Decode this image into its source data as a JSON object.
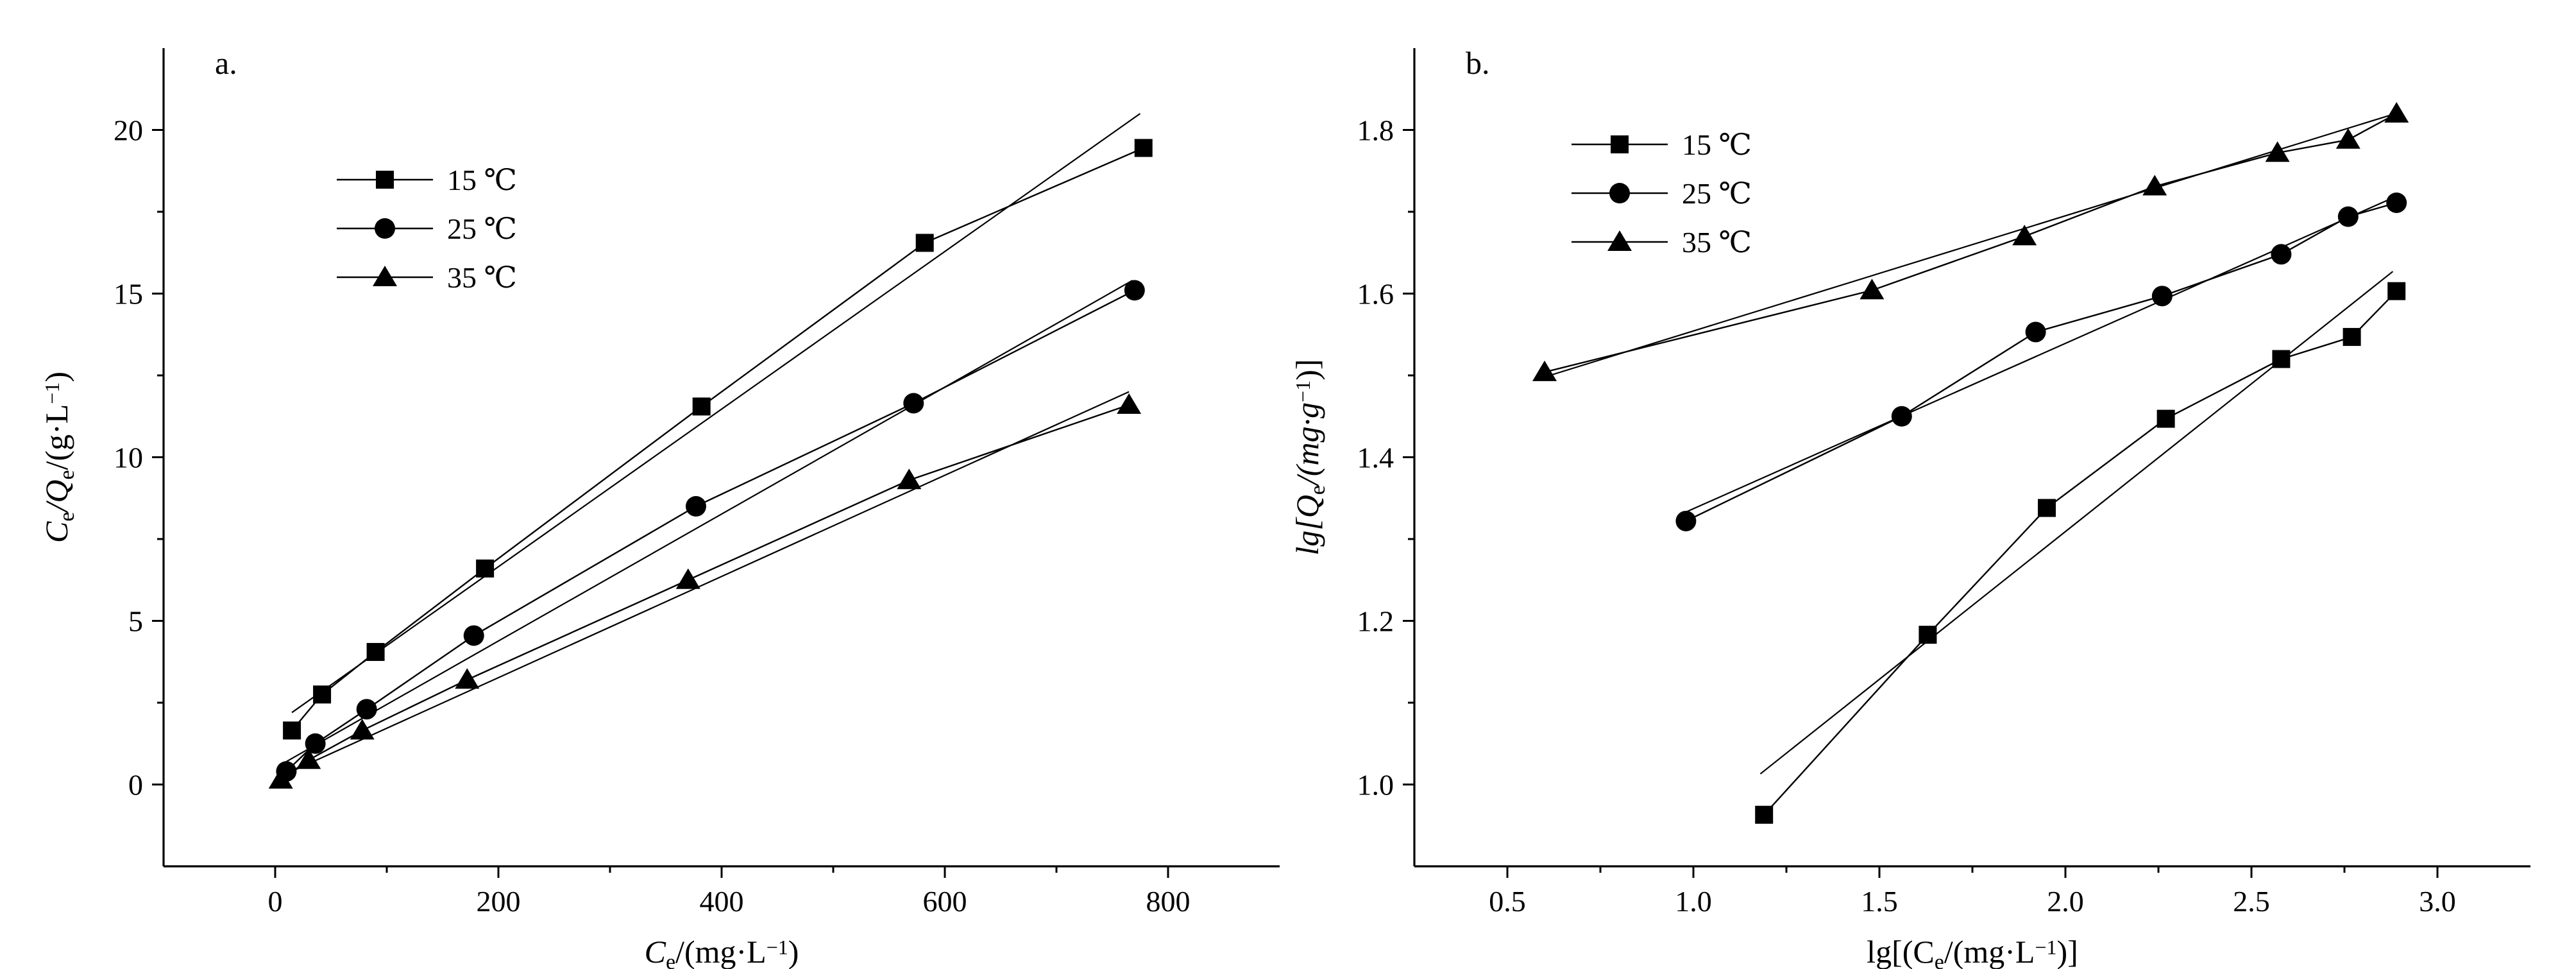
{
  "chart_data": [
    {
      "type": "line",
      "panel_label": "a.",
      "ylabel": "Ce/Qe/(g·L⁻¹)",
      "ylabel_parts": [
        "C",
        "e",
        "/Q",
        "e",
        "/(g·L",
        "−1",
        ")"
      ],
      "xlabel": "Ce/(mg·L⁻¹)",
      "xlabel_parts": [
        "C",
        "e",
        "/(mg·L",
        "−1",
        ")"
      ],
      "xlim": [
        -100,
        900
      ],
      "ylim": [
        -2.5,
        22.5
      ],
      "x_ticks": [
        0,
        200,
        400,
        600,
        800
      ],
      "x_tick_labels": [
        "0",
        "200",
        "400",
        "600",
        "800"
      ],
      "y_ticks": [
        0,
        5,
        10,
        15,
        20
      ],
      "y_tick_labels": [
        "0",
        "5",
        "10",
        "15",
        "20"
      ],
      "legend": {
        "position": "top-left",
        "entries": [
          "15 ℃",
          "25 ℃",
          "35 ℃"
        ]
      },
      "series": [
        {
          "name": "15 ℃",
          "marker": "square",
          "x": [
            15,
            42,
            90,
            188,
            382,
            582,
            778
          ],
          "y": [
            1.65,
            2.75,
            4.05,
            6.6,
            11.55,
            16.55,
            19.45
          ],
          "fit": {
            "x": [
              15,
              775
            ],
            "y": [
              2.2,
              20.5
            ]
          }
        },
        {
          "name": "25 ℃",
          "marker": "circle",
          "x": [
            10,
            36,
            82,
            178,
            377,
            572,
            770
          ],
          "y": [
            0.4,
            1.25,
            2.3,
            4.55,
            8.5,
            11.65,
            15.1
          ],
          "fit": {
            "x": [
              10,
              768
            ],
            "y": [
              0.7,
              15.4
            ]
          }
        },
        {
          "name": "35 ℃",
          "marker": "triangle",
          "x": [
            5,
            30,
            78,
            172,
            370,
            568,
            765
          ],
          "y": [
            0.15,
            0.75,
            1.65,
            3.2,
            6.25,
            9.3,
            11.6
          ],
          "fit": {
            "x": [
              5,
              765
            ],
            "y": [
              0.25,
              12.0
            ]
          }
        }
      ]
    },
    {
      "type": "line",
      "panel_label": "b.",
      "ylabel": "lg[Qe/(mg·g⁻¹)]",
      "ylabel_parts": [
        "lg[Q",
        "e",
        "/(mg·g",
        "−1",
        ")]"
      ],
      "xlabel": "lg[(Ce/(mg·L⁻¹)]",
      "xlabel_parts": [
        "lg[(C",
        "e",
        "/(mg·L",
        "−1",
        ")]"
      ],
      "xlim": [
        0.25,
        3.25
      ],
      "ylim": [
        0.9,
        1.9
      ],
      "x_ticks": [
        0.5,
        1.0,
        1.5,
        2.0,
        2.5,
        3.0
      ],
      "x_tick_labels": [
        "0.5",
        "1.0",
        "1.5",
        "2.0",
        "2.5",
        "3.0"
      ],
      "y_ticks": [
        1.0,
        1.2,
        1.4,
        1.6,
        1.8
      ],
      "y_tick_labels": [
        "1.0",
        "1.2",
        "1.4",
        "1.6",
        "1.8"
      ],
      "legend": {
        "position": "top-left",
        "entries": [
          "15 ℃",
          "25 ℃",
          "35 ℃"
        ]
      },
      "series": [
        {
          "name": "15 ℃",
          "marker": "square",
          "x": [
            1.19,
            1.63,
            1.95,
            2.27,
            2.58,
            2.77,
            2.89
          ],
          "y": [
            0.963,
            1.183,
            1.338,
            1.447,
            1.52,
            1.547,
            1.603
          ],
          "fit": {
            "x": [
              1.18,
              2.88
            ],
            "y": [
              1.013,
              1.627
            ]
          }
        },
        {
          "name": "25 ℃",
          "marker": "circle",
          "x": [
            0.98,
            1.56,
            1.92,
            2.26,
            2.58,
            2.76,
            2.89
          ],
          "y": [
            1.322,
            1.45,
            1.553,
            1.597,
            1.648,
            1.694,
            1.711
          ],
          "fit": {
            "x": [
              0.98,
              2.88
            ],
            "y": [
              1.333,
              1.717
            ]
          }
        },
        {
          "name": "35 ℃",
          "marker": "triangle",
          "x": [
            0.6,
            1.48,
            1.89,
            2.24,
            2.57,
            2.76,
            2.89
          ],
          "y": [
            1.504,
            1.604,
            1.67,
            1.731,
            1.772,
            1.788,
            1.82
          ],
          "fit": {
            "x": [
              0.6,
              2.88
            ],
            "y": [
              1.498,
              1.819
            ]
          }
        }
      ]
    }
  ]
}
